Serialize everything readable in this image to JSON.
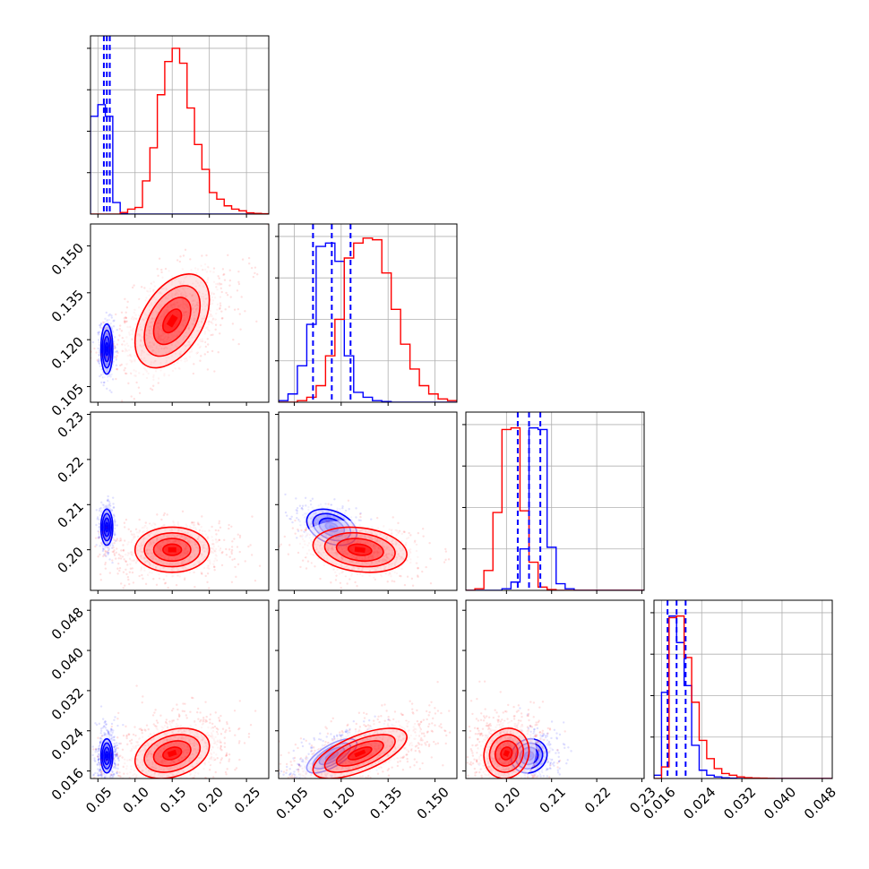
{
  "colors": {
    "series_a": "#0000ff",
    "series_b": "#ff0000",
    "grid": "#b0b0b0",
    "frame": "#000000"
  },
  "chart_data": {
    "type": "corner",
    "parameters": [
      {
        "range": [
          0.04,
          0.28
        ],
        "ticks": [
          0.05,
          0.1,
          0.15,
          0.2,
          0.25
        ],
        "tick_labels": [
          "0.05",
          "0.10",
          "0.15",
          "0.20",
          "0.25"
        ]
      },
      {
        "range": [
          0.1,
          0.157
        ],
        "ticks": [
          0.105,
          0.12,
          0.135,
          0.15
        ],
        "tick_labels": [
          "0.105",
          "0.120",
          "0.135",
          "0.150"
        ]
      },
      {
        "range": [
          0.191,
          0.2305
        ],
        "ticks": [
          0.2,
          0.21,
          0.22,
          0.23
        ],
        "tick_labels": [
          "0.20",
          "0.21",
          "0.22",
          "0.23"
        ]
      },
      {
        "range": [
          0.0145,
          0.05
        ],
        "ticks": [
          0.016,
          0.024,
          0.032,
          0.04,
          0.048
        ],
        "tick_labels": [
          "0.016",
          "0.024",
          "0.032",
          "0.040",
          "0.048"
        ]
      }
    ],
    "grid": true,
    "series": [
      {
        "color": "#0000ff",
        "mean": [
          0.062,
          0.117,
          0.205,
          0.019
        ],
        "sd": [
          0.004,
          0.004,
          0.002,
          0.0017
        ],
        "quantiles": [
          [
            0.058,
            0.062,
            0.066
          ],
          [
            0.111,
            0.117,
            0.123
          ],
          [
            0.2025,
            0.205,
            0.2075
          ],
          [
            0.0172,
            0.019,
            0.0208
          ]
        ]
      },
      {
        "color": "#ff0000",
        "mean": [
          0.15,
          0.126,
          0.2,
          0.0195
        ],
        "sd": [
          0.025,
          0.0075,
          0.0025,
          0.0025
        ]
      }
    ],
    "histograms": [
      {
        "parameter": 0,
        "bin_edges": [
          0.04,
          0.05,
          0.06,
          0.07,
          0.08,
          0.09,
          0.1,
          0.11,
          0.12,
          0.13,
          0.14,
          0.15,
          0.16,
          0.17,
          0.18,
          0.19,
          0.2,
          0.21,
          0.22,
          0.23,
          0.24,
          0.25,
          0.26,
          0.27,
          0.28
        ],
        "series_a": [
          0.59,
          0.66,
          0.59,
          0.07,
          0.003,
          0,
          0,
          0,
          0,
          0,
          0,
          0,
          0,
          0,
          0,
          0,
          0,
          0,
          0,
          0,
          0,
          0,
          0,
          0
        ],
        "series_b": [
          0,
          0,
          0,
          0,
          0.01,
          0.03,
          0.04,
          0.2,
          0.4,
          0.72,
          0.92,
          1.0,
          0.91,
          0.64,
          0.42,
          0.27,
          0.13,
          0.09,
          0.05,
          0.03,
          0.02,
          0.008,
          0.004,
          0.002
        ]
      },
      {
        "parameter": 1,
        "bin_edges": [
          0.1,
          0.103,
          0.106,
          0.109,
          0.112,
          0.115,
          0.118,
          0.121,
          0.124,
          0.127,
          0.13,
          0.133,
          0.136,
          0.139,
          0.142,
          0.145,
          0.148,
          0.151,
          0.154,
          0.157
        ],
        "series_a": [
          0.01,
          0.05,
          0.22,
          0.47,
          0.94,
          0.96,
          0.85,
          0.28,
          0.06,
          0.03,
          0.01,
          0.004,
          0,
          0,
          0,
          0,
          0,
          0,
          0
        ],
        "series_b": [
          0,
          0,
          0.01,
          0.03,
          0.1,
          0.28,
          0.5,
          0.87,
          0.96,
          0.99,
          0.98,
          0.78,
          0.56,
          0.35,
          0.2,
          0.1,
          0.05,
          0.02,
          0.01
        ]
      },
      {
        "parameter": 2,
        "bin_edges": [
          0.191,
          0.193,
          0.195,
          0.197,
          0.199,
          0.201,
          0.203,
          0.205,
          0.207,
          0.209,
          0.211,
          0.213,
          0.215,
          0.217,
          0.219,
          0.221,
          0.223,
          0.225,
          0.227,
          0.229,
          0.2305
        ],
        "series_a": [
          0,
          0,
          0,
          0,
          0.01,
          0.05,
          0.25,
          0.98,
          0.97,
          0.26,
          0.04,
          0.01,
          0,
          0,
          0,
          0,
          0,
          0,
          0,
          0
        ],
        "series_b": [
          0,
          0.01,
          0.12,
          0.47,
          0.97,
          0.98,
          0.48,
          0.17,
          0.02,
          0.005,
          0,
          0,
          0,
          0,
          0,
          0,
          0,
          0,
          0,
          0
        ]
      },
      {
        "parameter": 3,
        "bin_edges": [
          0.0145,
          0.016,
          0.0175,
          0.019,
          0.0205,
          0.022,
          0.0235,
          0.025,
          0.0265,
          0.028,
          0.0295,
          0.031,
          0.0325,
          0.034,
          0.0355,
          0.037,
          0.0385,
          0.04,
          0.0415,
          0.043,
          0.0445,
          0.046,
          0.0475,
          0.049,
          0.05
        ],
        "series_a": [
          0.02,
          0.52,
          0.98,
          0.82,
          0.56,
          0.2,
          0.05,
          0.02,
          0.01,
          0.004,
          0.002,
          0,
          0,
          0,
          0,
          0,
          0,
          0,
          0,
          0,
          0,
          0,
          0,
          0
        ],
        "series_b": [
          0,
          0.07,
          0.97,
          0.98,
          0.73,
          0.46,
          0.23,
          0.12,
          0.06,
          0.03,
          0.02,
          0.01,
          0.005,
          0.003,
          0.002,
          0.001,
          0,
          0,
          0,
          0,
          0,
          0,
          0,
          0
        ]
      }
    ],
    "panels_2d": [
      {
        "x": 0,
        "y": 1,
        "series_a_rho": 0.0,
        "series_b_rho": 0.45
      },
      {
        "x": 0,
        "y": 2,
        "series_a_rho": 0.0,
        "series_b_rho": 0.0
      },
      {
        "x": 1,
        "y": 2,
        "series_a_rho": -0.35,
        "series_b_rho": -0.2
      },
      {
        "x": 0,
        "y": 3,
        "series_a_rho": 0.0,
        "series_b_rho": 0.3
      },
      {
        "x": 1,
        "y": 3,
        "series_a_rho": 0.7,
        "series_b_rho": 0.65
      },
      {
        "x": 2,
        "y": 3,
        "series_a_rho": 0.1,
        "series_b_rho": 0.1
      }
    ]
  }
}
